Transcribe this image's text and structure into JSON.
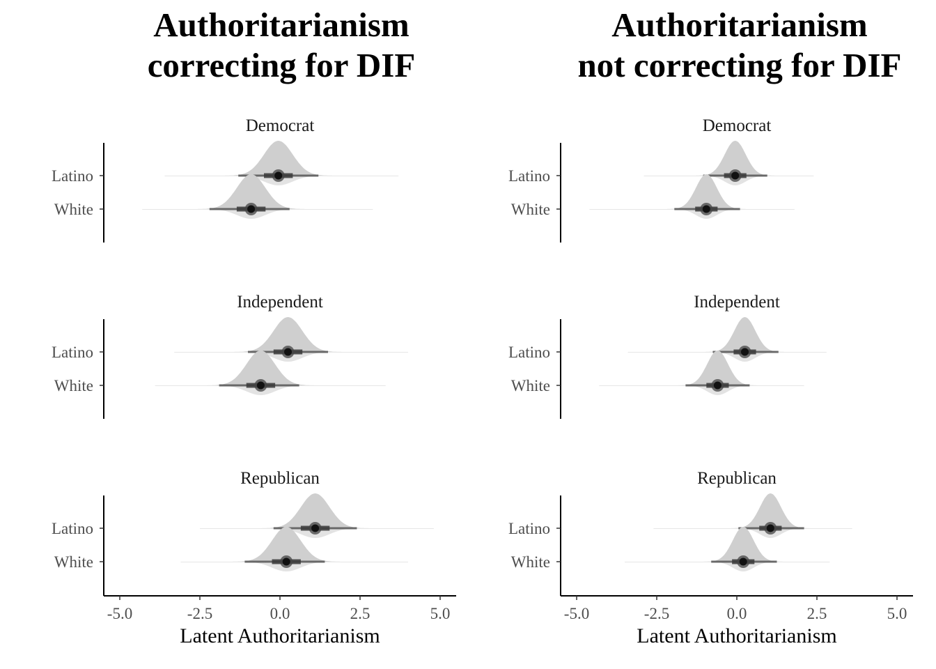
{
  "chart_data": [
    {
      "type": "halfeye",
      "title": "Authoritarianism\ncorrecting for DIF",
      "xlabel": "Latent Authoritarianism",
      "ylabel": "",
      "xlim": [
        -5.5,
        5.5
      ],
      "xticks": [
        "-5.0",
        "-2.5",
        "0.0",
        "2.5",
        "5.0"
      ],
      "categories": [
        "Latino",
        "White"
      ],
      "grid": false,
      "facets": [
        {
          "name": "Democrat",
          "series": [
            {
              "category": "Latino",
              "median": -0.05,
              "q66": [
                -0.5,
                0.4
              ],
              "q95": [
                -1.3,
                1.2
              ],
              "sd": 0.45,
              "range": [
                -3.6,
                3.7
              ]
            },
            {
              "category": "White",
              "median": -0.9,
              "q66": [
                -1.35,
                -0.45
              ],
              "q95": [
                -2.2,
                0.3
              ],
              "sd": 0.45,
              "range": [
                -4.3,
                2.9
              ]
            }
          ]
        },
        {
          "name": "Independent",
          "series": [
            {
              "category": "Latino",
              "median": 0.25,
              "q66": [
                -0.2,
                0.7
              ],
              "q95": [
                -1.0,
                1.5
              ],
              "sd": 0.45,
              "range": [
                -3.3,
                4.0
              ]
            },
            {
              "category": "White",
              "median": -0.6,
              "q66": [
                -1.05,
                -0.15
              ],
              "q95": [
                -1.9,
                0.6
              ],
              "sd": 0.45,
              "range": [
                -3.9,
                3.3
              ]
            }
          ]
        },
        {
          "name": "Republican",
          "series": [
            {
              "category": "Latino",
              "median": 1.1,
              "q66": [
                0.65,
                1.55
              ],
              "q95": [
                -0.2,
                2.4
              ],
              "sd": 0.45,
              "range": [
                -2.5,
                4.8
              ]
            },
            {
              "category": "White",
              "median": 0.2,
              "q66": [
                -0.25,
                0.65
              ],
              "q95": [
                -1.1,
                1.4
              ],
              "sd": 0.45,
              "range": [
                -3.1,
                4.0
              ]
            }
          ]
        }
      ]
    },
    {
      "type": "halfeye",
      "title": "Authoritarianism\nnot correcting for DIF",
      "xlabel": "Latent Authoritarianism",
      "ylabel": "",
      "xlim": [
        -5.5,
        5.5
      ],
      "xticks": [
        "-5.0",
        "-2.5",
        "0.0",
        "2.5",
        "5.0"
      ],
      "categories": [
        "Latino",
        "White"
      ],
      "grid": false,
      "facets": [
        {
          "name": "Democrat",
          "series": [
            {
              "category": "Latino",
              "median": -0.05,
              "q66": [
                -0.4,
                0.3
              ],
              "q95": [
                -1.05,
                0.95
              ],
              "sd": 0.33,
              "range": [
                -2.9,
                2.4
              ]
            },
            {
              "category": "White",
              "median": -0.95,
              "q66": [
                -1.3,
                -0.6
              ],
              "q95": [
                -1.95,
                0.1
              ],
              "sd": 0.33,
              "range": [
                -4.6,
                1.8
              ]
            }
          ]
        },
        {
          "name": "Independent",
          "series": [
            {
              "category": "Latino",
              "median": 0.25,
              "q66": [
                -0.1,
                0.6
              ],
              "q95": [
                -0.75,
                1.3
              ],
              "sd": 0.33,
              "range": [
                -3.4,
                2.8
              ]
            },
            {
              "category": "White",
              "median": -0.6,
              "q66": [
                -0.95,
                -0.25
              ],
              "q95": [
                -1.6,
                0.4
              ],
              "sd": 0.33,
              "range": [
                -4.3,
                2.1
              ]
            }
          ]
        },
        {
          "name": "Republican",
          "series": [
            {
              "category": "Latino",
              "median": 1.05,
              "q66": [
                0.7,
                1.4
              ],
              "q95": [
                0.05,
                2.1
              ],
              "sd": 0.33,
              "range": [
                -2.6,
                3.6
              ]
            },
            {
              "category": "White",
              "median": 0.2,
              "q66": [
                -0.15,
                0.55
              ],
              "q95": [
                -0.8,
                1.25
              ],
              "sd": 0.33,
              "range": [
                -3.5,
                2.9
              ]
            }
          ]
        }
      ]
    }
  ]
}
